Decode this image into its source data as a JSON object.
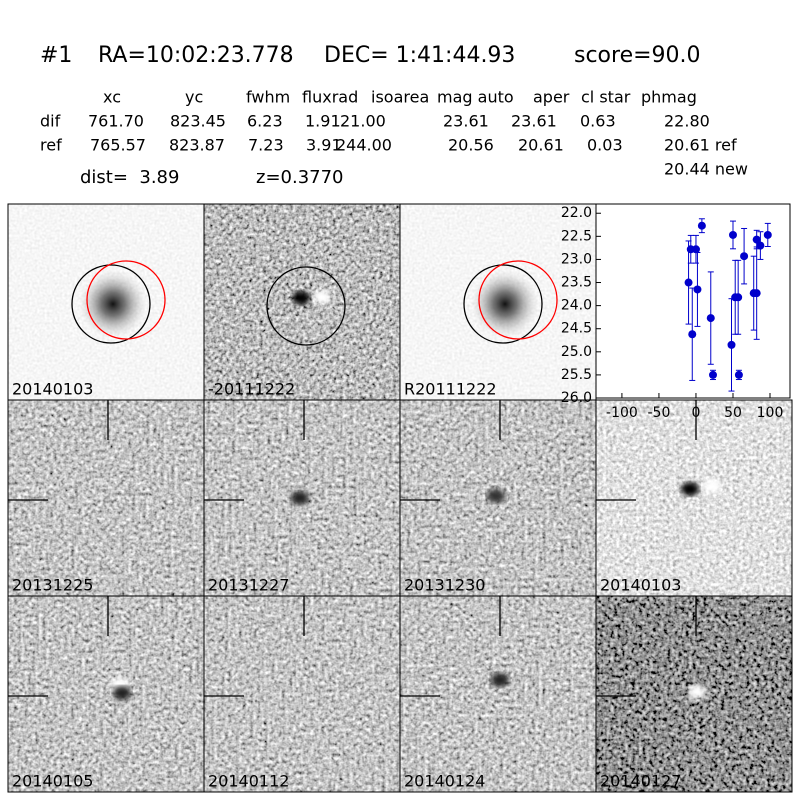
{
  "header": {
    "title": "#1",
    "ra": "RA=10:02:23.778",
    "dec": "DEC= 1:41:44.93",
    "score": "score=90.0"
  },
  "table": {
    "columns": [
      "xc",
      "yc",
      "fwhm",
      "fluxrad",
      "isoarea",
      "mag auto",
      "aper",
      "cl star",
      "phmag"
    ],
    "rows": [
      [
        "dif",
        "761.70",
        "823.45",
        "6.23",
        "1.91",
        "21.00",
        "23.61",
        "23.61",
        "0.63",
        "22.80"
      ],
      [
        "ref",
        "765.57",
        "823.87",
        "7.23",
        "3.91",
        "244.00",
        "20.56",
        "20.61",
        "0.03",
        "20.61 ref"
      ]
    ],
    "extra": "20.44 new"
  },
  "summary": {
    "dist": "dist=  3.89",
    "z": "z=0.3770"
  },
  "panels": [
    {
      "label": "20140103"
    },
    {
      "label": "-20111222"
    },
    {
      "label": "R20111222"
    },
    {
      "label": "20131225"
    },
    {
      "label": "20131227"
    },
    {
      "label": "20131230"
    },
    {
      "label": "20140103",
      "color": "#ff0000"
    },
    {
      "label": "20140105"
    },
    {
      "label": "20140112"
    },
    {
      "label": "20140124"
    },
    {
      "label": "20140127"
    }
  ],
  "chart_data": {
    "type": "scatter",
    "color": "#0000cc",
    "x": [
      -10,
      -7,
      -5,
      0,
      2,
      8,
      20,
      23,
      48,
      50,
      53,
      57,
      58,
      65,
      78,
      82,
      82,
      87,
      97
    ],
    "values": [
      23.5,
      22.78,
      24.62,
      22.78,
      23.65,
      22.27,
      24.27,
      25.5,
      24.85,
      22.47,
      23.82,
      23.82,
      25.5,
      22.93,
      23.73,
      23.73,
      22.57,
      22.7,
      22.47
    ],
    "errors": [
      0.9,
      0.3,
      1.0,
      0.3,
      0.8,
      0.15,
      1.0,
      0.1,
      1.0,
      0.3,
      0.8,
      0.8,
      0.1,
      0.6,
      0.8,
      1.0,
      0.2,
      0.3,
      0.25
    ],
    "xlim": [
      -135,
      127
    ],
    "ylim": [
      26,
      21.8
    ],
    "xticks": [
      -100,
      -50,
      0,
      50,
      100
    ],
    "yticks": [
      {
        "value": 22,
        "label": "22.0"
      },
      22.5,
      {
        "value": 23,
        "label": "23.0"
      },
      23.5,
      {
        "value": 24,
        "label": "24.0"
      },
      24.5,
      {
        "value": 25,
        "label": "25.0"
      },
      25.5,
      {
        "value": 26,
        "label": "26.0"
      }
    ]
  }
}
